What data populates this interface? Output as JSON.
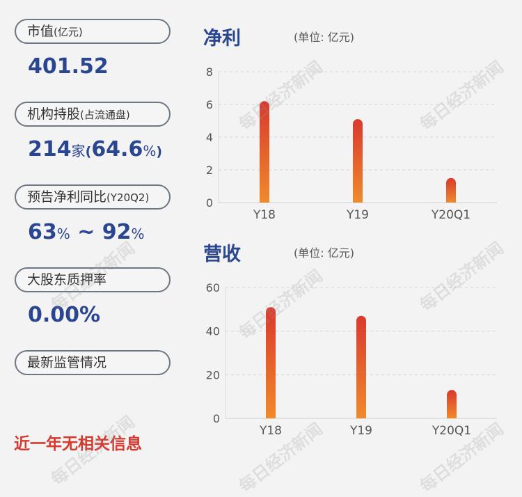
{
  "left": {
    "market_value": {
      "label": "市值",
      "label_unit": "(亿元)",
      "value": "401.52"
    },
    "institutions": {
      "label": "机构持股",
      "label_unit": "(占流通盘)",
      "count": "214",
      "count_unit": "家",
      "pct_open": "(",
      "pct": "64.6",
      "pct_unit": "%",
      "pct_close": ")"
    },
    "forecast": {
      "label": "预告净利同比",
      "label_unit": "(Y20Q2)",
      "low": "63",
      "low_unit": "%",
      "sep": " ~ ",
      "high": "92",
      "high_unit": "%"
    },
    "pledge": {
      "label": "大股东质押率",
      "value": "0.00%"
    },
    "regulation": {
      "label": "最新监管情况"
    },
    "notice": "近一年无相关信息"
  },
  "watermark": "每日经济新闻",
  "colors": {
    "bar_top": "#d9392d",
    "bar_bottom": "#f08a2c",
    "title": "#2b4690",
    "notice": "#d63a2f"
  },
  "chart_data": [
    {
      "type": "bar",
      "title": "净利",
      "unit_note": "(单位: 亿元)",
      "categories": [
        "Y18",
        "Y19",
        "Y20Q1"
      ],
      "values": [
        6.2,
        5.1,
        1.5
      ],
      "ylim": [
        0,
        8
      ],
      "yticks": [
        "0",
        "2",
        "4",
        "6",
        "8"
      ],
      "grid": true
    },
    {
      "type": "bar",
      "title": "营收",
      "unit_note": "(单位: 亿元)",
      "categories": [
        "Y18",
        "Y19",
        "Y20Q1"
      ],
      "values": [
        51,
        47,
        13
      ],
      "ylim": [
        0,
        60
      ],
      "yticks": [
        "0",
        "20",
        "40",
        "60"
      ],
      "grid": true
    }
  ]
}
